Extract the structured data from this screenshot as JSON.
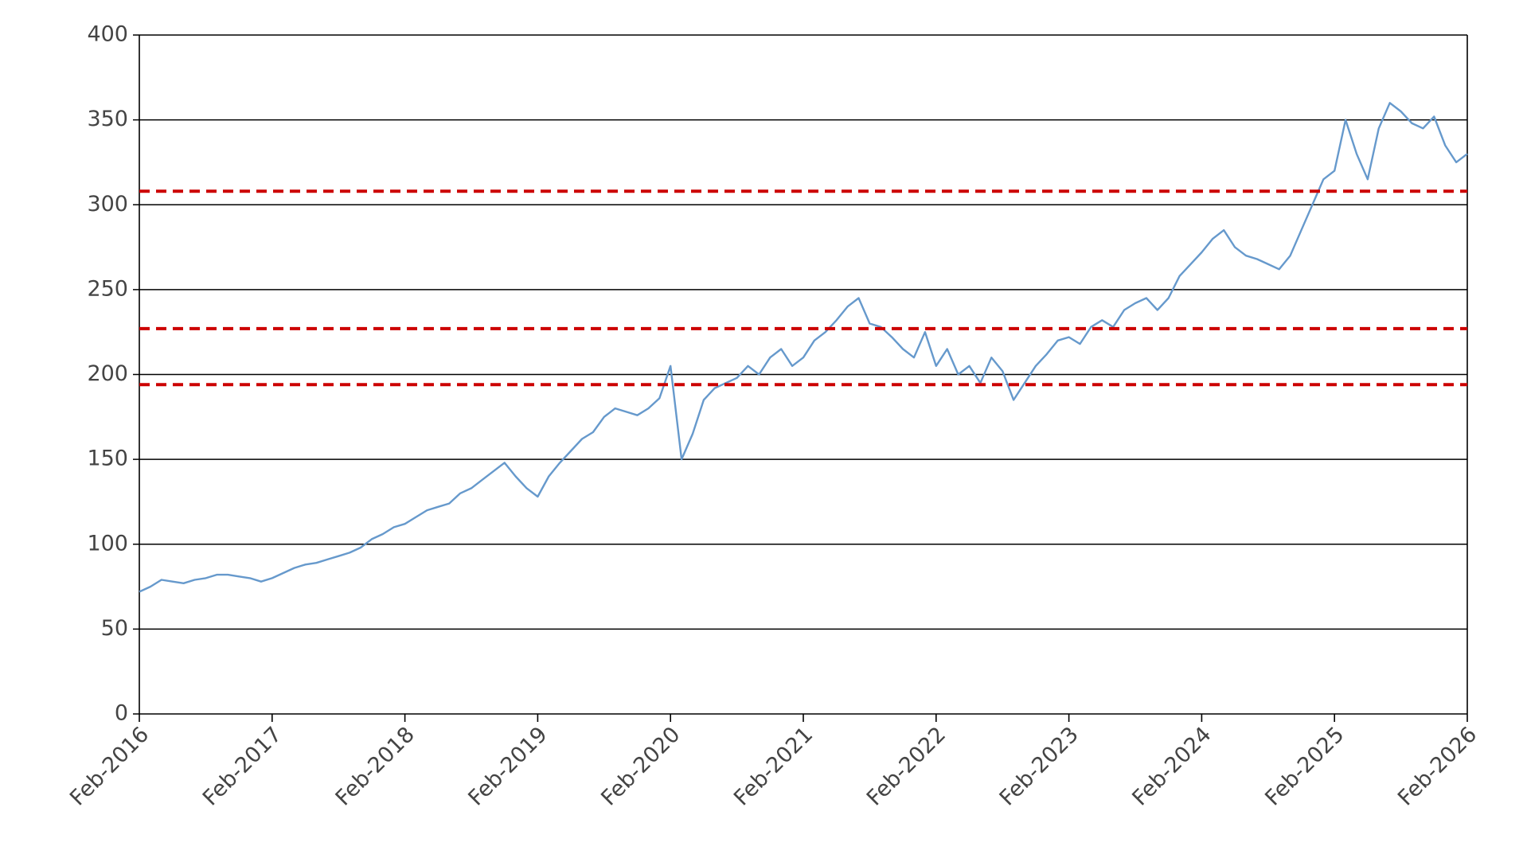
{
  "chart_data": {
    "type": "line",
    "x": [
      "2016-02",
      "2016-03",
      "2016-04",
      "2016-05",
      "2016-06",
      "2016-07",
      "2016-08",
      "2016-09",
      "2016-10",
      "2016-11",
      "2016-12",
      "2017-01",
      "2017-02",
      "2017-03",
      "2017-04",
      "2017-05",
      "2017-06",
      "2017-07",
      "2017-08",
      "2017-09",
      "2017-10",
      "2017-11",
      "2017-12",
      "2018-01",
      "2018-02",
      "2018-03",
      "2018-04",
      "2018-05",
      "2018-06",
      "2018-07",
      "2018-08",
      "2018-09",
      "2018-10",
      "2018-11",
      "2018-12",
      "2019-01",
      "2019-02",
      "2019-03",
      "2019-04",
      "2019-05",
      "2019-06",
      "2019-07",
      "2019-08",
      "2019-09",
      "2019-10",
      "2019-11",
      "2019-12",
      "2020-01",
      "2020-02",
      "2020-03",
      "2020-04",
      "2020-05",
      "2020-06",
      "2020-07",
      "2020-08",
      "2020-09",
      "2020-10",
      "2020-11",
      "2020-12",
      "2021-01",
      "2021-02",
      "2021-03",
      "2021-04",
      "2021-05",
      "2021-06",
      "2021-07",
      "2021-08",
      "2021-09",
      "2021-10",
      "2021-11",
      "2021-12",
      "2022-01",
      "2022-02",
      "2022-03",
      "2022-04",
      "2022-05",
      "2022-06",
      "2022-07",
      "2022-08",
      "2022-09",
      "2022-10",
      "2022-11",
      "2022-12",
      "2023-01",
      "2023-02",
      "2023-03",
      "2023-04",
      "2023-05",
      "2023-06",
      "2023-07",
      "2023-08",
      "2023-09",
      "2023-10",
      "2023-11",
      "2023-12",
      "2024-01",
      "2024-02",
      "2024-03",
      "2024-04",
      "2024-05",
      "2024-06",
      "2024-07",
      "2024-08",
      "2024-09",
      "2024-10",
      "2024-11",
      "2024-12",
      "2025-01",
      "2025-02",
      "2025-03",
      "2025-04",
      "2025-05",
      "2025-06",
      "2025-07",
      "2025-08",
      "2025-09",
      "2025-10",
      "2025-11",
      "2025-12",
      "2026-01",
      "2026-02"
    ],
    "series": [
      {
        "color": "#6699cc",
        "values": [
          72,
          75,
          79,
          78,
          77,
          79,
          80,
          82,
          82,
          81,
          80,
          78,
          80,
          83,
          86,
          88,
          89,
          91,
          93,
          95,
          98,
          103,
          106,
          110,
          112,
          116,
          120,
          122,
          124,
          130,
          133,
          138,
          143,
          148,
          140,
          133,
          128,
          140,
          148,
          155,
          162,
          166,
          175,
          180,
          178,
          176,
          180,
          186,
          205,
          150,
          165,
          185,
          192,
          195,
          198,
          205,
          200,
          210,
          215,
          205,
          210,
          220,
          225,
          232,
          240,
          245,
          230,
          228,
          222,
          215,
          210,
          225,
          205,
          215,
          200,
          205,
          195,
          210,
          202,
          185,
          195,
          205,
          212,
          220,
          222,
          218,
          228,
          232,
          228,
          238,
          242,
          245,
          238,
          245,
          258,
          265,
          272,
          280,
          285,
          275,
          270,
          268,
          265,
          262,
          270,
          285,
          300,
          315,
          320,
          350,
          330,
          315,
          345,
          360,
          355,
          348,
          345,
          352,
          335,
          325,
          330
        ]
      }
    ],
    "reference_lines": [
      {
        "value": 308,
        "color": "#cc0000"
      },
      {
        "value": 227,
        "color": "#cc0000"
      },
      {
        "value": 194,
        "color": "#cc0000"
      }
    ],
    "xlim": [
      "2016-02",
      "2026-02"
    ],
    "xticks": [
      {
        "value": "2016-02",
        "label": "Feb-2016"
      },
      {
        "value": "2017-02",
        "label": "Feb-2017"
      },
      {
        "value": "2018-02",
        "label": "Feb-2018"
      },
      {
        "value": "2019-02",
        "label": "Feb-2019"
      },
      {
        "value": "2020-02",
        "label": "Feb-2020"
      },
      {
        "value": "2021-02",
        "label": "Feb-2021"
      },
      {
        "value": "2022-02",
        "label": "Feb-2022"
      },
      {
        "value": "2023-02",
        "label": "Feb-2023"
      },
      {
        "value": "2024-02",
        "label": "Feb-2024"
      },
      {
        "value": "2025-02",
        "label": "Feb-2025"
      },
      {
        "value": "2026-02",
        "label": "Feb-2026"
      }
    ],
    "ylim": [
      0,
      400
    ],
    "yticks": [
      0,
      50,
      100,
      150,
      200,
      250,
      300,
      350,
      400
    ],
    "grid": true
  }
}
